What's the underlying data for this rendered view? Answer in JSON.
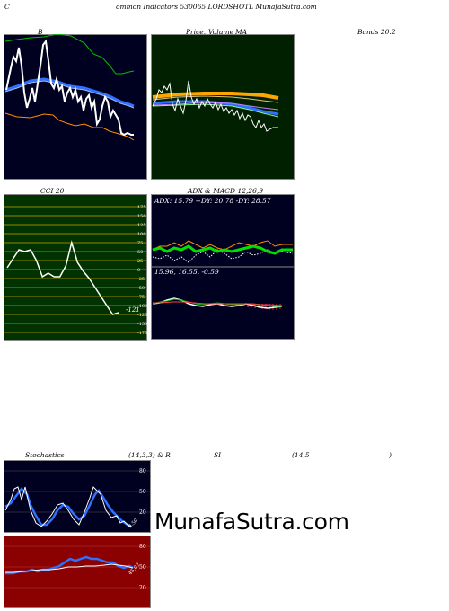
{
  "header": {
    "left": "C",
    "center": "ommon  Indicators 530065 LORDSHOTL  MunafaSutra.com"
  },
  "bollinger": {
    "title": "B",
    "right_title": "Bands 20.2"
  },
  "price_ma": {
    "title_price": "Price,",
    "title_volume": "Volume",
    "title_ma": "MA"
  },
  "cci": {
    "title": "CCI 20",
    "current_label": "-121",
    "axis_labels": [
      "175",
      "150",
      "125",
      "100",
      "75",
      "50",
      "25",
      "0",
      "-25",
      "-50",
      "-75",
      "-100",
      "-125",
      "-150",
      "-175"
    ],
    "series": [
      5,
      30,
      55,
      50,
      55,
      25,
      -20,
      -10,
      -20,
      -20,
      10,
      75,
      20,
      -5,
      -25,
      -50,
      -75,
      -100,
      -125,
      -120
    ]
  },
  "adx_macd": {
    "title": "ADX  & MACD 12,26,9",
    "adx_text": "ADX: 15.79  +DY: 20.78  -DY: 28.57",
    "macd_text": "15.96,  16.55,  -0.59"
  },
  "stoch_rsi": {
    "title_left": "Stochastics",
    "title_params": "(14,3,3) & R",
    "title_si": "SI",
    "title_rsi_params": "(14,5",
    "title_close": ")",
    "stoch_axis": [
      "80",
      "50",
      "20"
    ],
    "stoch_current": "0.50",
    "rsi_axis": [
      "80",
      "50",
      "20"
    ],
    "rsi_current": "45.07"
  },
  "watermark": "MunafaSutra.com",
  "colors": {
    "dark_panel": "#000020",
    "green_panel": "#002000",
    "cci_panel": "#003300",
    "rsi_panel": "#8b0000"
  }
}
